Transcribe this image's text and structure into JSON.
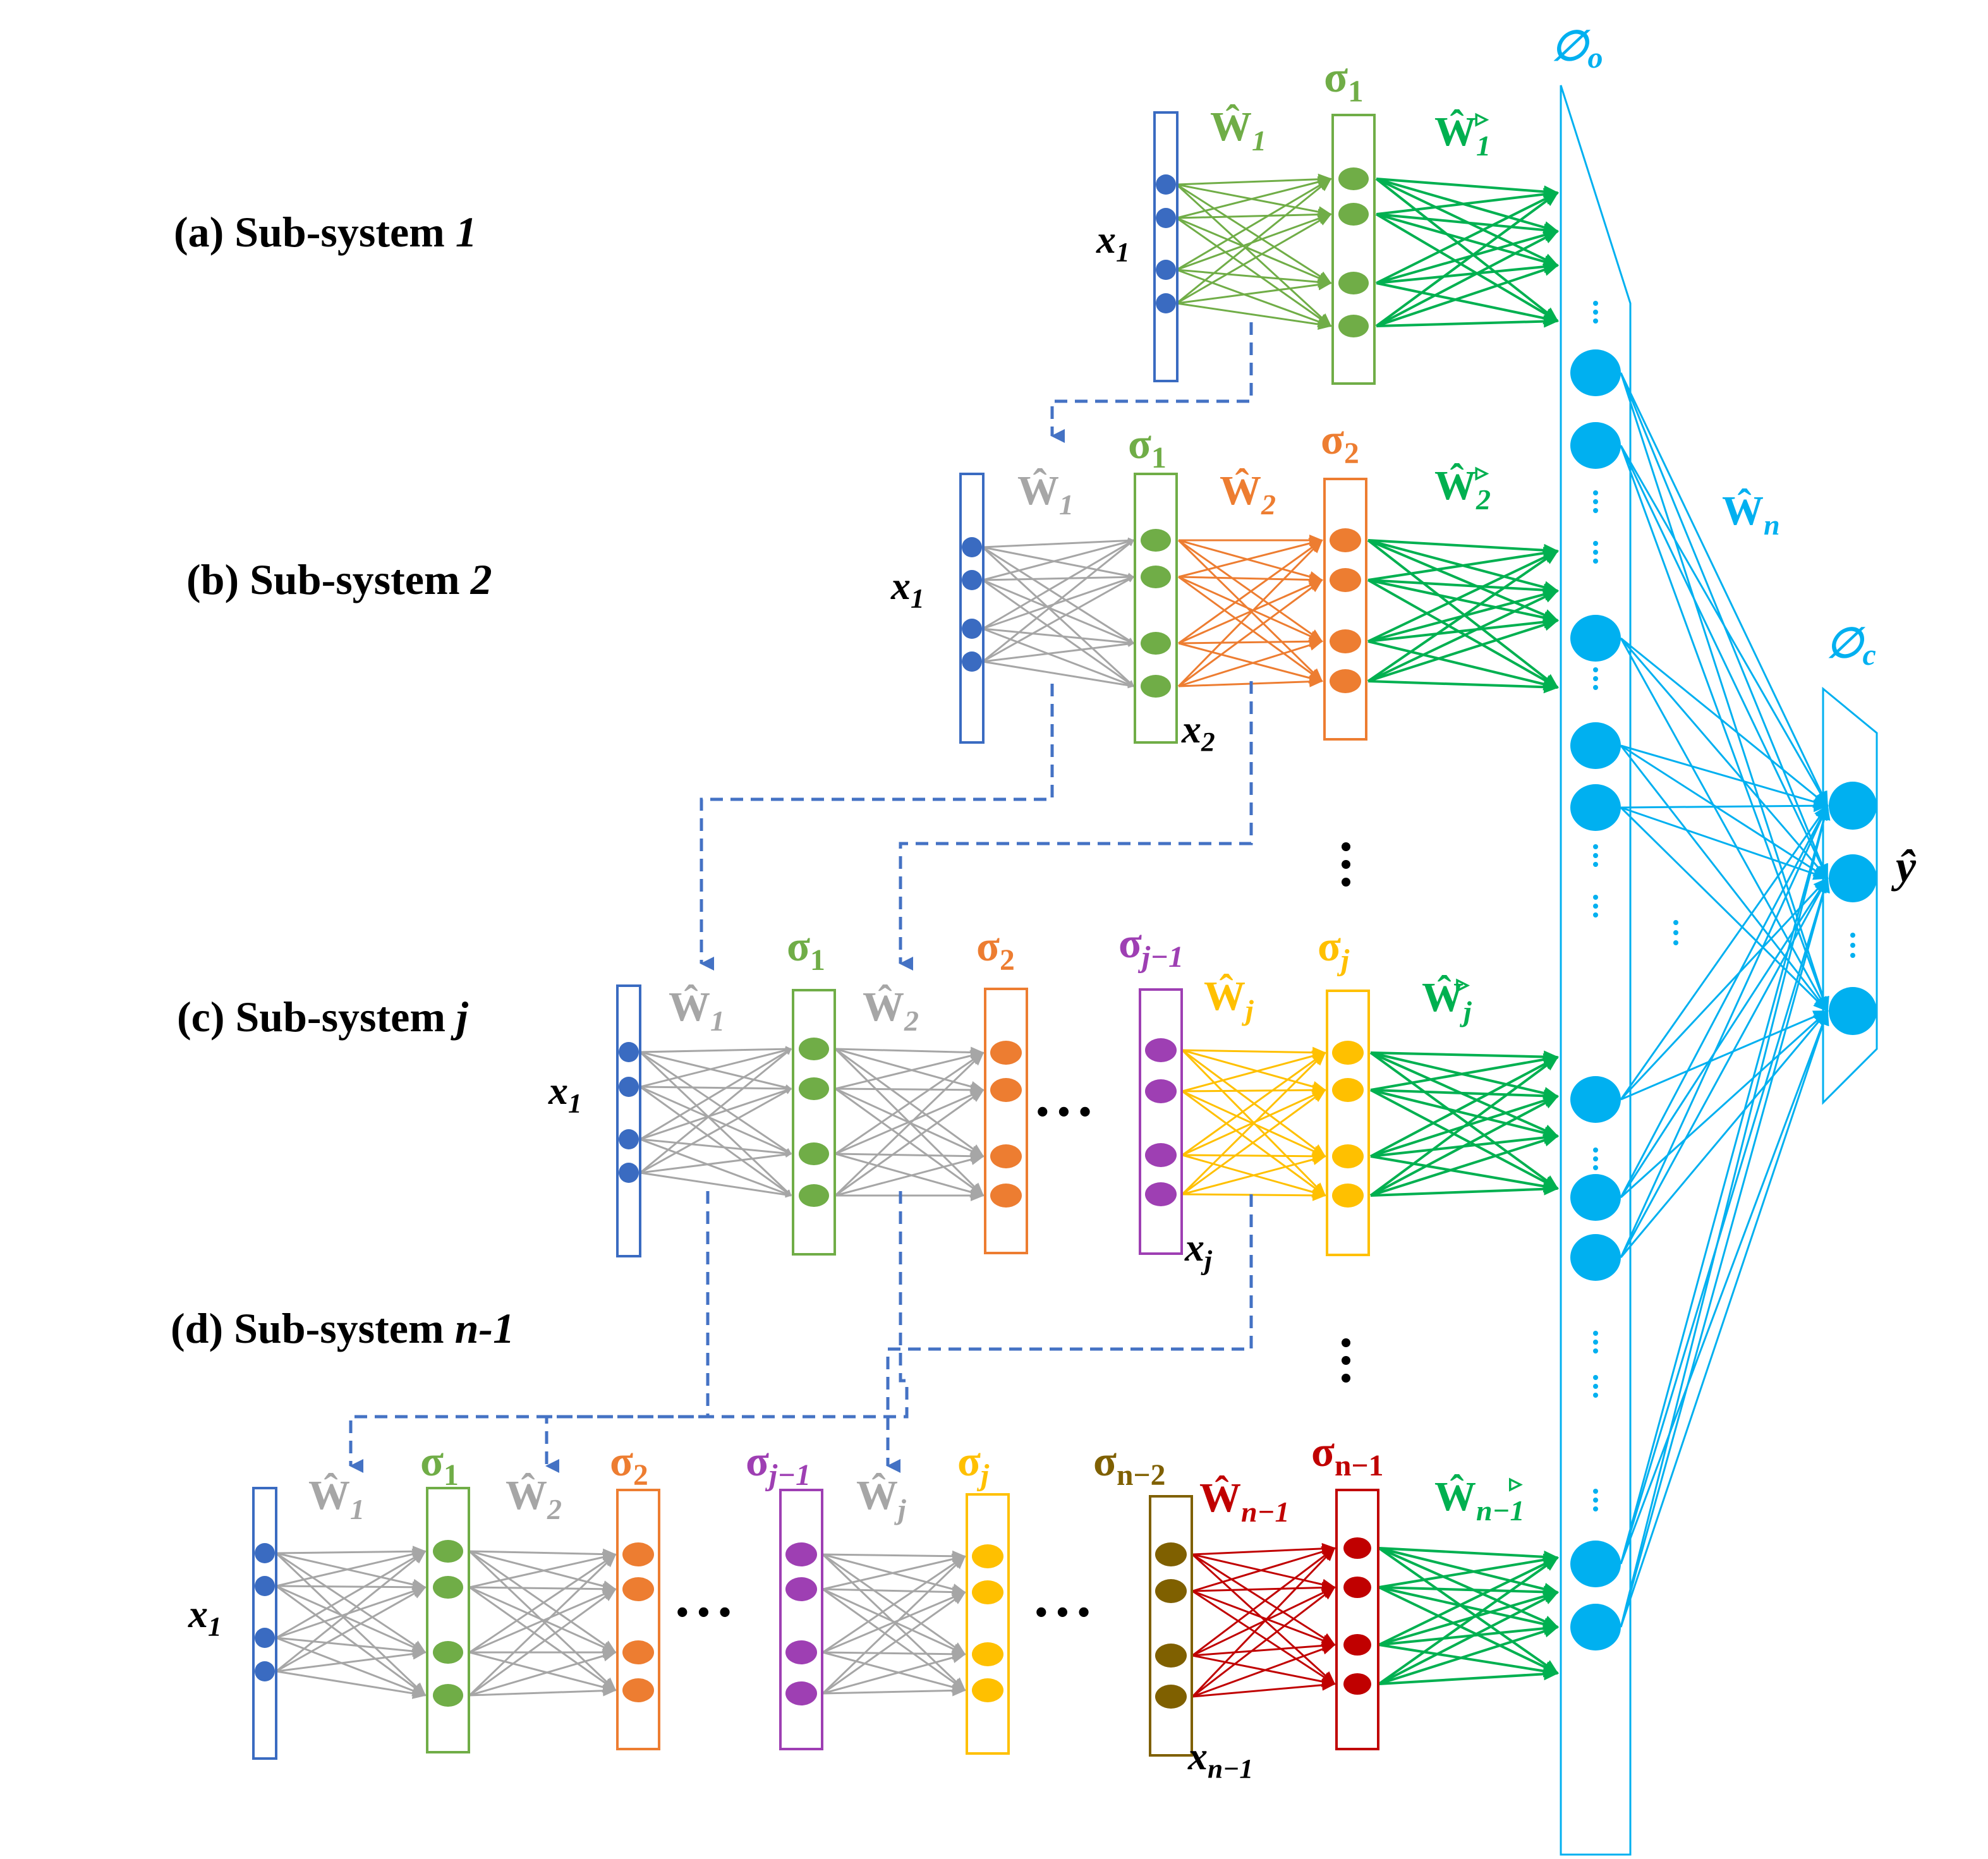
{
  "colors": {
    "blue": "#3A6BC1",
    "green": "#70AD47",
    "green_dark": "#00B050",
    "orange": "#ED7D31",
    "purple": "#9E3FB3",
    "yellow": "#FFC000",
    "olive": "#7F6000",
    "red": "#C00000",
    "gray": "#A6A6A6",
    "cyan": "#00B0F0",
    "dash": "#4472C4"
  },
  "captions": [
    {
      "prefix": "(a) Sub-system ",
      "suffix": "1"
    },
    {
      "prefix": "(b) Sub-system ",
      "suffix": "2"
    },
    {
      "prefix": "(c) Sub-system ",
      "suffix": "j"
    },
    {
      "prefix": "(d) Sub-system ",
      "suffix": "n-1"
    }
  ],
  "labels": {
    "x1": "x",
    "x1_sub": "1",
    "x2_sub": "2",
    "xj_sub": "j",
    "xn1_sub": "n−1",
    "sigma": "σ",
    "s1": "1",
    "s2": "2",
    "sj1": "j−1",
    "sj": "j",
    "sn2": "n−2",
    "sn1": "n−1",
    "w": "Ŵ",
    "w1": "1",
    "w2": "2",
    "wj": "j",
    "wn1": "n−1",
    "wn": "n",
    "tri": "▹",
    "phi": "∅",
    "phi_o": "o",
    "phi_c": "c",
    "yhat": "ŷ",
    "dots3": "• • •",
    "vdots": "⋮"
  }
}
